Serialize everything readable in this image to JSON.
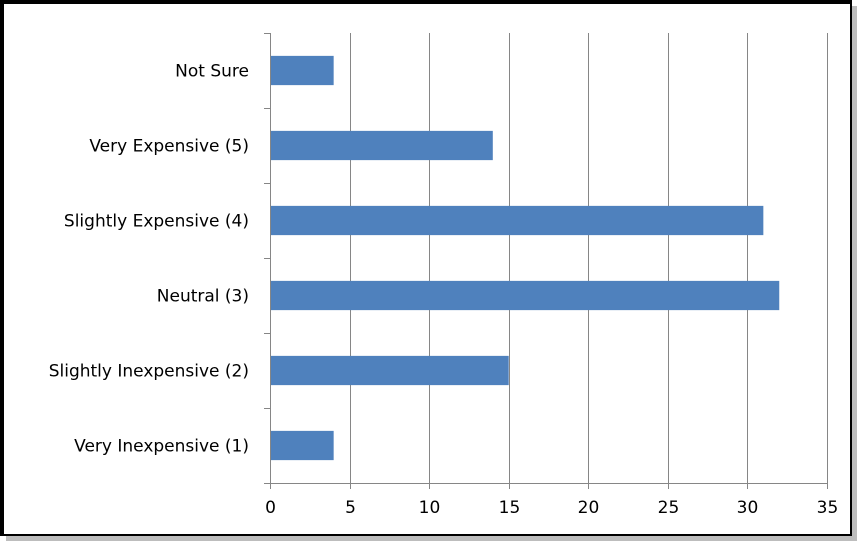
{
  "chart_data": {
    "type": "bar",
    "orientation": "horizontal",
    "title": "",
    "xlabel": "",
    "ylabel": "",
    "categories": [
      "Very Inexpensive (1)",
      "Slightly Inexpensive (2)",
      "Neutral (3)",
      "Slightly Expensive (4)",
      "Very Expensive (5)",
      "Not Sure"
    ],
    "values": [
      4,
      15,
      32,
      31,
      14,
      4
    ],
    "xlim": [
      0,
      35
    ],
    "xticks": [
      "0",
      "5",
      "10",
      "15",
      "20",
      "25",
      "30",
      "35"
    ],
    "grid": true,
    "legend": "none",
    "bar_color": "#4F81BD",
    "grid_color": "#868686"
  }
}
